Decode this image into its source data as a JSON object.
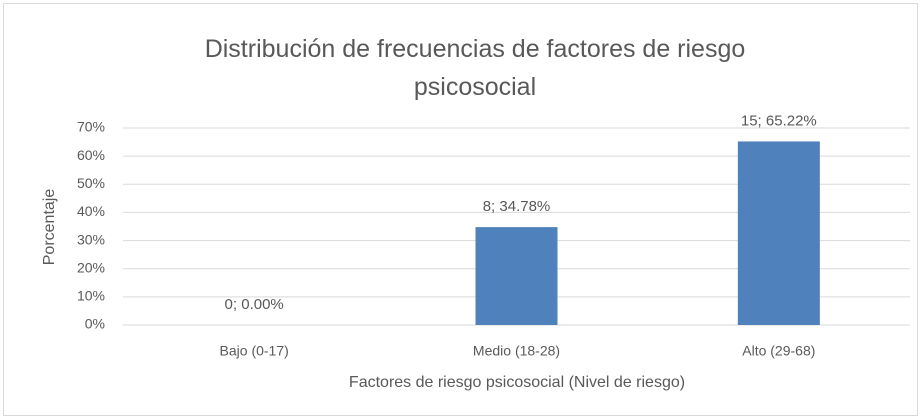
{
  "chart_data": {
    "type": "bar",
    "title": "Distribución de frecuencias de factores de riesgo psicosocial",
    "xlabel": "Factores de riesgo psicosocial (Nivel de riesgo)",
    "ylabel": "Porcentaje",
    "categories": [
      "Bajo (0-17)",
      "Medio (18-28)",
      "Alto (29-68)"
    ],
    "values": [
      0,
      34.78,
      65.22
    ],
    "value_labels": [
      "0; 0.00%",
      "8; 34.78%",
      "15; 65.22%"
    ],
    "color": "#4f81bd",
    "ylim": [
      0,
      70
    ],
    "yticks": [
      {
        "value": 0,
        "label": "0%"
      },
      {
        "value": 10,
        "label": "10%"
      },
      {
        "value": 20,
        "label": "20%"
      },
      {
        "value": 30,
        "label": "30%"
      },
      {
        "value": 40,
        "label": "40%"
      },
      {
        "value": 50,
        "label": "50%"
      },
      {
        "value": 60,
        "label": "60%"
      },
      {
        "value": 70,
        "label": "70%"
      }
    ],
    "grid": true
  }
}
